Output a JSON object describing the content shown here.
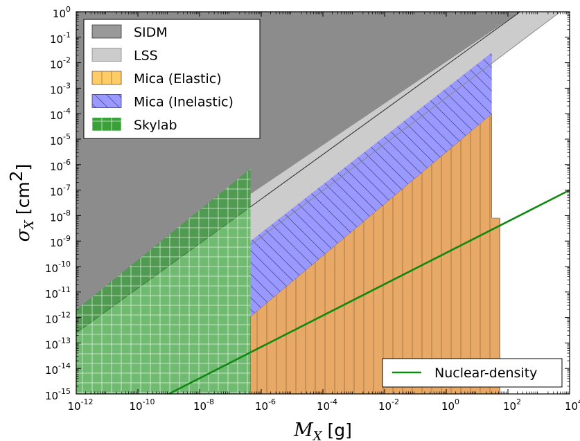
{
  "chart_data": {
    "type": "area",
    "x_axis": {
      "label_var": "M",
      "label_sub": "X",
      "label_unit": "[g]",
      "scale": "log",
      "lim": [
        1e-12,
        10000.0
      ],
      "ticks": [
        {
          "base": "10",
          "exp": "-12",
          "value": 1e-12
        },
        {
          "base": "10",
          "exp": "-10",
          "value": 1e-10
        },
        {
          "base": "10",
          "exp": "-8",
          "value": 1e-08
        },
        {
          "base": "10",
          "exp": "-6",
          "value": 1e-06
        },
        {
          "base": "10",
          "exp": "-4",
          "value": 0.0001
        },
        {
          "base": "10",
          "exp": "-2",
          "value": 0.01
        },
        {
          "base": "10",
          "exp": "0",
          "value": 1
        },
        {
          "base": "10",
          "exp": "2",
          "value": 100.0
        },
        {
          "base": "10",
          "exp": "4",
          "value": 10000.0
        }
      ]
    },
    "y_axis": {
      "label_var": "σ",
      "label_sub": "X",
      "label_unit_pre": "[cm",
      "label_unit_exp": "2",
      "label_unit_post": "]",
      "scale": "log",
      "lim": [
        1e-15,
        1
      ],
      "ticks": [
        {
          "base": "10",
          "exp": "-15",
          "value": 1e-15
        },
        {
          "base": "10",
          "exp": "-14",
          "value": 1e-14
        },
        {
          "base": "10",
          "exp": "-13",
          "value": 1e-13
        },
        {
          "base": "10",
          "exp": "-12",
          "value": 1e-12
        },
        {
          "base": "10",
          "exp": "-11",
          "value": 1e-11
        },
        {
          "base": "10",
          "exp": "-10",
          "value": 1e-10
        },
        {
          "base": "10",
          "exp": "-9",
          "value": 1e-09
        },
        {
          "base": "10",
          "exp": "-8",
          "value": 1e-08
        },
        {
          "base": "10",
          "exp": "-7",
          "value": 1e-07
        },
        {
          "base": "10",
          "exp": "-6",
          "value": 1e-06
        },
        {
          "base": "10",
          "exp": "-5",
          "value": 1e-05
        },
        {
          "base": "10",
          "exp": "-4",
          "value": 0.0001
        },
        {
          "base": "10",
          "exp": "-3",
          "value": 0.001
        },
        {
          "base": "10",
          "exp": "-2",
          "value": 0.01
        },
        {
          "base": "10",
          "exp": "-1",
          "value": 0.1
        },
        {
          "base": "10",
          "exp": "0",
          "value": 1
        }
      ]
    },
    "series": [
      {
        "name": "SIDM",
        "kind": "excluded-region",
        "color": "#8c8c8c",
        "boundary_lower": [
          [
            1e-12,
            2.5e-13
          ],
          [
            250.0,
            1
          ]
        ]
      },
      {
        "name": "LSS",
        "kind": "excluded-region",
        "color": "#cccccc",
        "boundary_lower": [
          [
            4.5e-07,
            7e-10
          ],
          [
            5000.0,
            1
          ]
        ]
      },
      {
        "name": "Mica (Elastic)",
        "kind": "excluded-region",
        "color": "#e8a866",
        "hatch": "vertical",
        "polygon": [
          [
            4.5e-07,
            1e-15
          ],
          [
            4.5e-07,
            1.1e-12
          ],
          [
            30,
            0.0001
          ],
          [
            30,
            8e-09
          ],
          [
            55,
            8e-09
          ],
          [
            55,
            1e-15
          ]
        ]
      },
      {
        "name": "Mica (Inelastic)",
        "kind": "excluded-region",
        "color": "#9999ff",
        "hatch": "diagonal",
        "polygon": [
          [
            4.5e-07,
            1.1e-12
          ],
          [
            4.5e-07,
            1e-09
          ],
          [
            30,
            0.025
          ],
          [
            30,
            0.0001
          ]
        ]
      },
      {
        "name": "Skylab",
        "kind": "excluded-region",
        "color": "#3aa03a",
        "hatch": "grid",
        "polygon": [
          [
            1e-12,
            1e-15
          ],
          [
            1e-12,
            2e-12
          ],
          [
            4.5e-07,
            7e-07
          ],
          [
            4.5e-07,
            1e-15
          ]
        ]
      },
      {
        "name": "Nuclear-density",
        "kind": "line",
        "color": "#118811",
        "points": [
          [
            1e-09,
            1e-15
          ],
          [
            10000.0,
            1e-07
          ]
        ]
      }
    ],
    "legend_upper_left": [
      {
        "label": "SIDM",
        "swatch": "sidm"
      },
      {
        "label": "LSS",
        "swatch": "lss"
      },
      {
        "label": "Mica (Elastic)",
        "swatch": "elastic"
      },
      {
        "label": "Mica (Inelastic)",
        "swatch": "inelastic"
      },
      {
        "label": "Skylab",
        "swatch": "skylab"
      }
    ],
    "legend_lower_right": [
      {
        "label": "Nuclear-density",
        "swatch": "line"
      }
    ],
    "grid": false,
    "background": "#ffffff"
  }
}
